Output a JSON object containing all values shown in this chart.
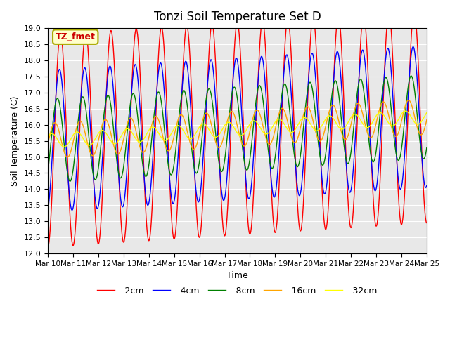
{
  "title": "Tonzi Soil Temperature Set D",
  "xlabel": "Time",
  "ylabel": "Soil Temperature (C)",
  "ylim": [
    12.0,
    19.0
  ],
  "yticks": [
    12.0,
    12.5,
    13.0,
    13.5,
    14.0,
    14.5,
    15.0,
    15.5,
    16.0,
    16.5,
    17.0,
    17.5,
    18.0,
    18.5,
    19.0
  ],
  "xtick_labels": [
    "Mar 10",
    "Mar 11",
    "Mar 12",
    "Mar 13",
    "Mar 14",
    "Mar 15",
    "Mar 16",
    "Mar 17",
    "Mar 18",
    "Mar 19",
    "Mar 20",
    "Mar 21",
    "Mar 22",
    "Mar 23",
    "Mar 24",
    "Mar 25"
  ],
  "series_colors": [
    "red",
    "blue",
    "green",
    "orange",
    "yellow"
  ],
  "series_labels": [
    "-2cm",
    "-4cm",
    "-8cm",
    "-16cm",
    "-32cm"
  ],
  "annotation_text": "TZ_fmet",
  "annotation_color": "#cc0000",
  "annotation_bg": "#ffffcc",
  "bg_color": "#e8e8e8",
  "n_points": 1500,
  "days": 15,
  "base_temp": 15.5,
  "trend": 0.05,
  "amplitude_2cm": 3.3,
  "amplitude_4cm": 2.2,
  "amplitude_8cm": 1.3,
  "amplitude_16cm": 0.55,
  "amplitude_32cm": 0.22,
  "phase_2cm": 0.0,
  "phase_4cm": 0.25,
  "phase_8cm": 0.75,
  "phase_16cm": 1.4,
  "phase_32cm": 2.2
}
